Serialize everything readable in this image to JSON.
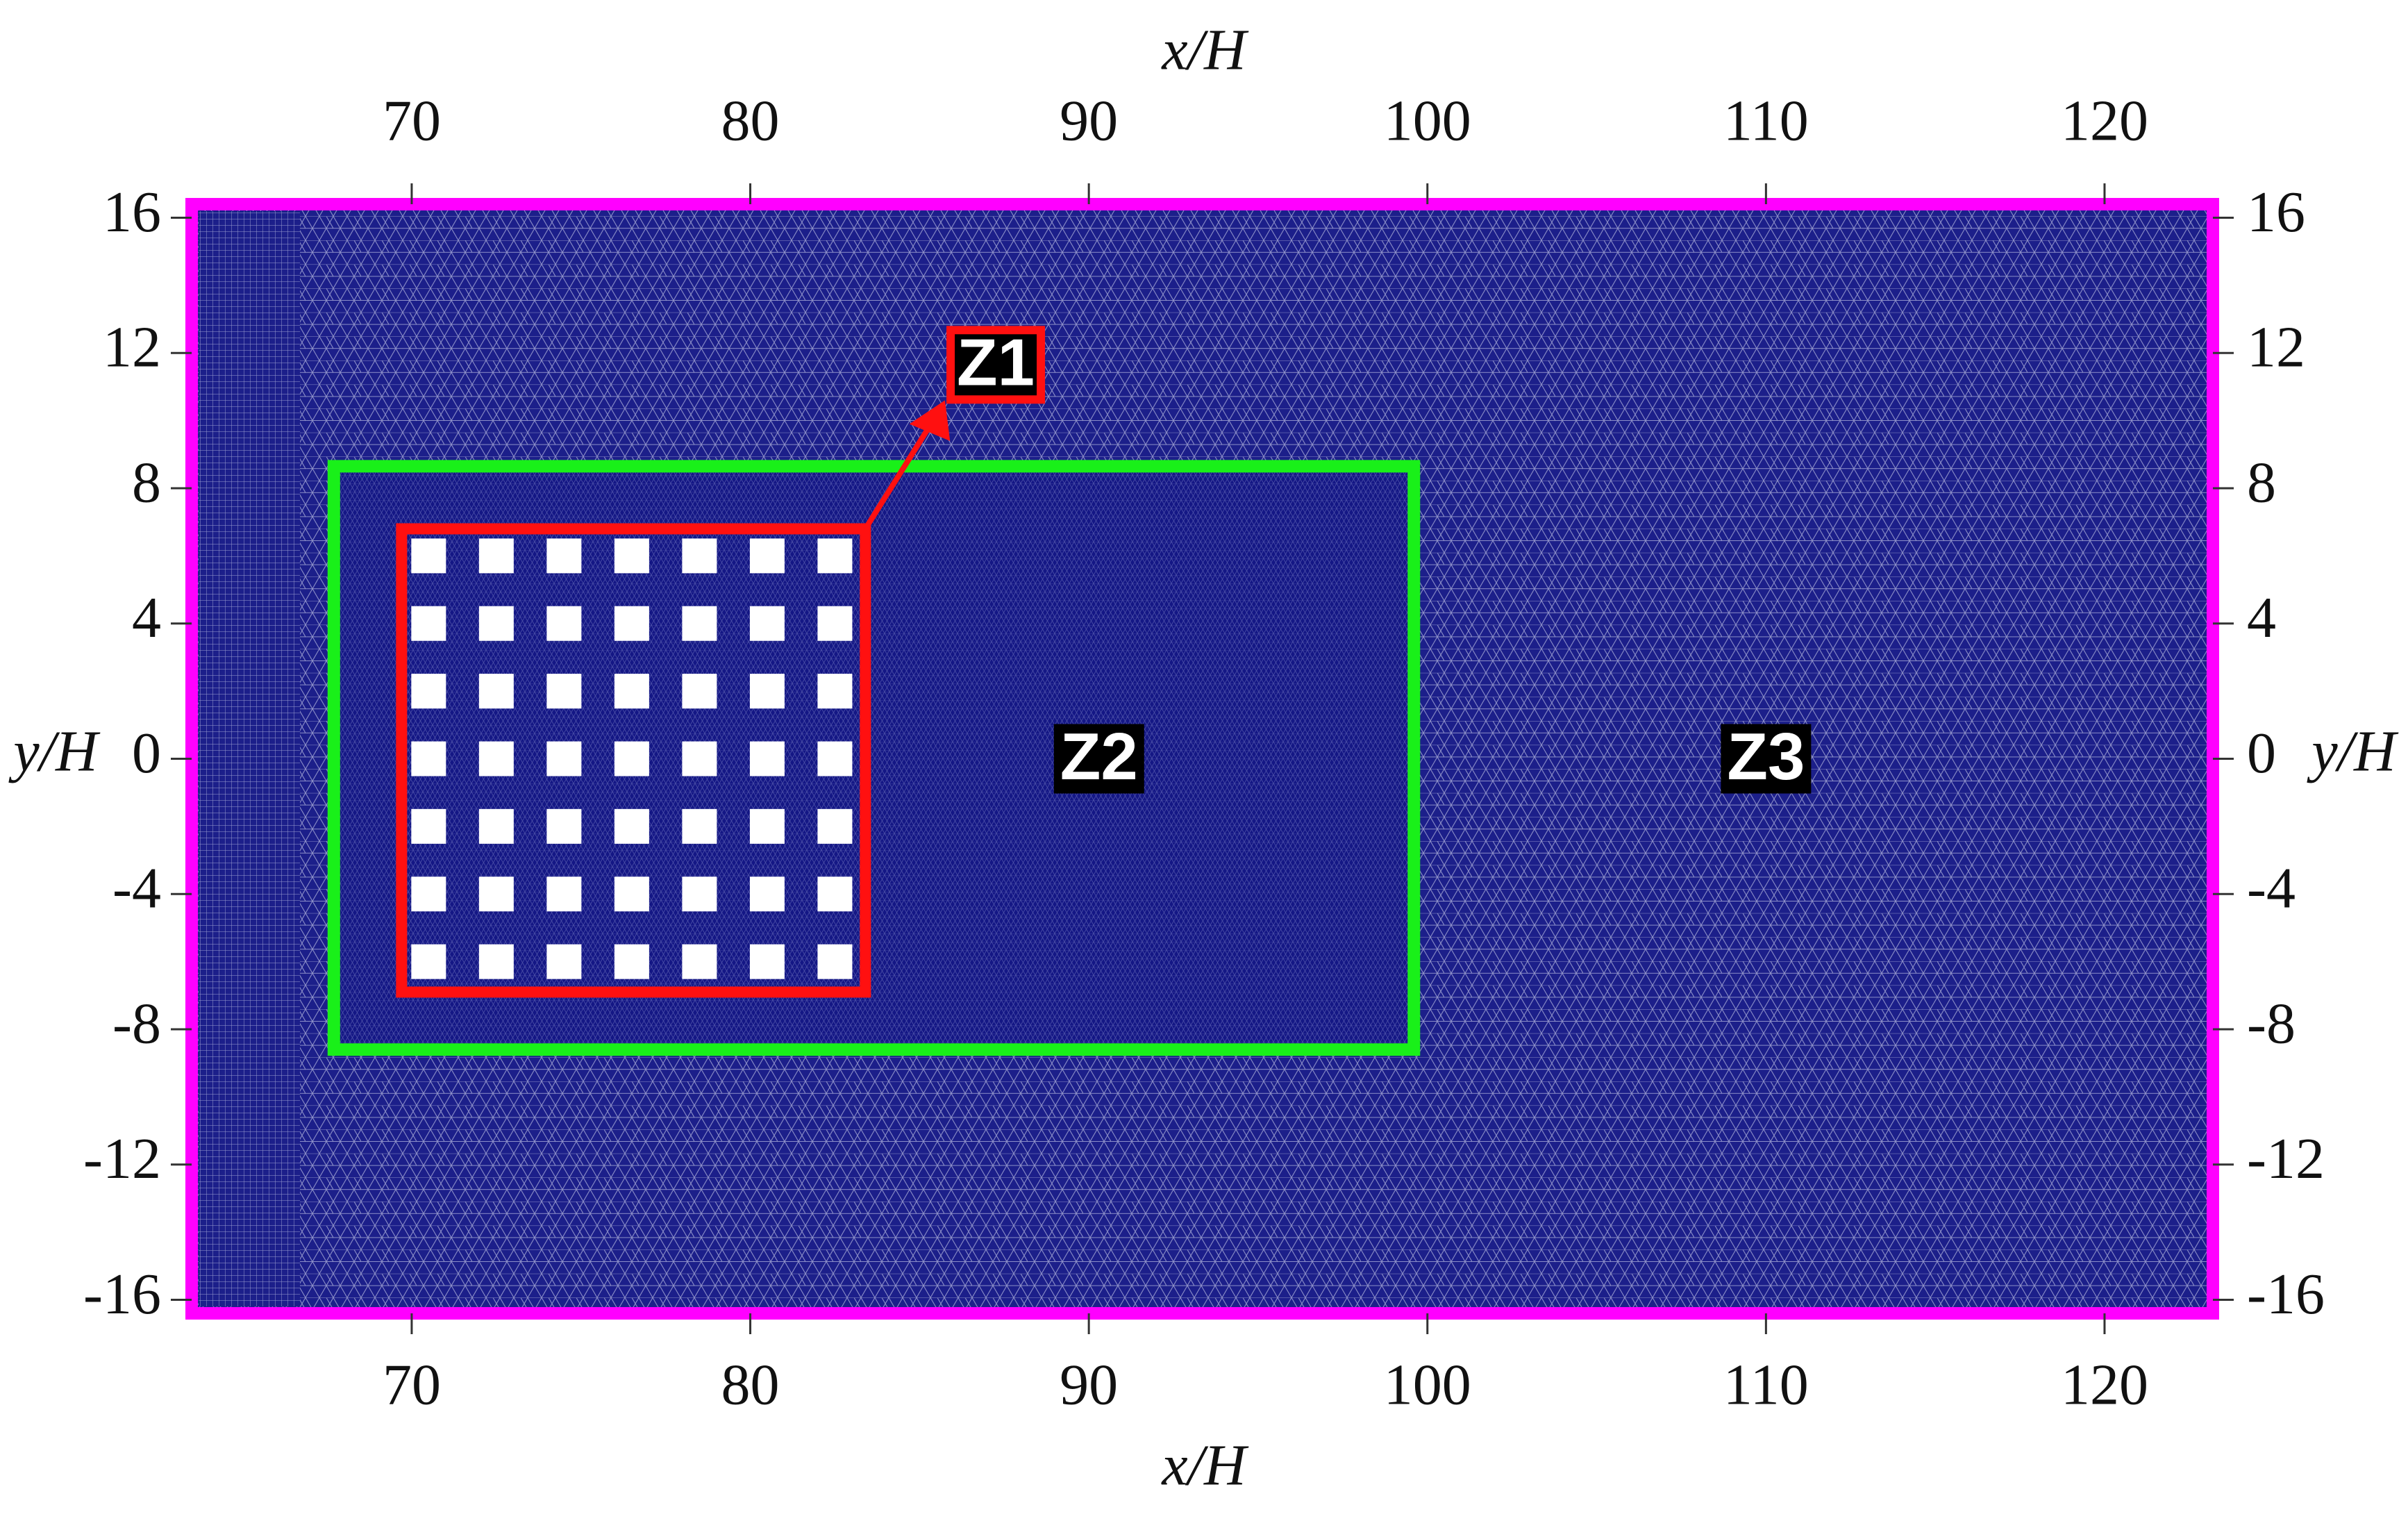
{
  "x_axis": {
    "label": "x/H",
    "lim": [
      63.5,
      123.2
    ],
    "ticks": [
      70,
      80,
      90,
      100,
      110,
      120
    ]
  },
  "y_axis": {
    "label": "y/H",
    "lim": [
      -16.4,
      16.4
    ],
    "ticks": [
      16,
      12,
      8,
      4,
      0,
      -4,
      -8,
      -12,
      -16
    ]
  },
  "zones": [
    {
      "label": "Z1"
    },
    {
      "label": "Z2"
    },
    {
      "label": "Z3"
    }
  ]
}
